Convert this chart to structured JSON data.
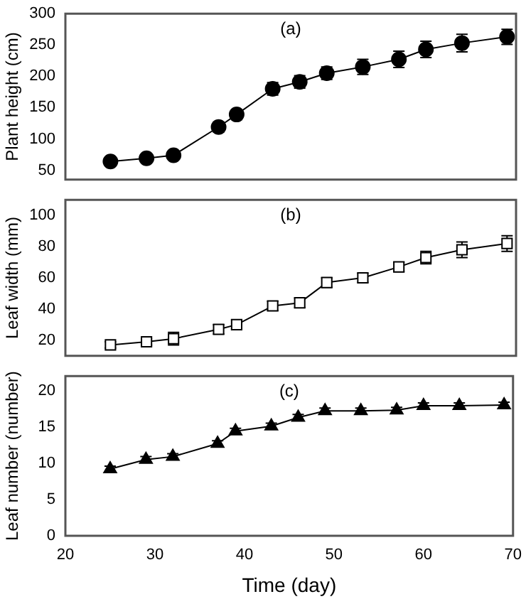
{
  "chart_data": [
    {
      "type": "line",
      "title": "(a)",
      "ylabel": "Plant height (cm)",
      "x": [
        25,
        29,
        32,
        37,
        39,
        43,
        46,
        49,
        53,
        57,
        60,
        64,
        69
      ],
      "xlim": [
        20,
        70
      ],
      "xticks": [
        20,
        30,
        40,
        50,
        60,
        70
      ],
      "ylim": [
        35,
        300
      ],
      "yticks": [
        50,
        100,
        150,
        200,
        250,
        300
      ],
      "tick_labels": "y",
      "grid": false,
      "legend": false,
      "marker": "circle",
      "series": [
        {
          "color": "#000000",
          "values": [
            64,
            69,
            74,
            119,
            139,
            180,
            191,
            205,
            215,
            227,
            243,
            253,
            263
          ],
          "errors": [
            null,
            null,
            null,
            8,
            8,
            10,
            10,
            10,
            12,
            13,
            13,
            14,
            12
          ]
        }
      ]
    },
    {
      "type": "line",
      "title": "(b)",
      "ylabel": "Leaf width (mm)",
      "x": [
        25,
        29,
        32,
        37,
        39,
        43,
        46,
        49,
        53,
        57,
        60,
        64,
        69
      ],
      "xlim": [
        20,
        70
      ],
      "xticks": [
        20,
        30,
        40,
        50,
        60,
        70
      ],
      "ylim": [
        10,
        110
      ],
      "yticks": [
        20,
        40,
        60,
        80,
        100
      ],
      "tick_labels": "y",
      "grid": false,
      "legend": false,
      "marker": "square",
      "series": [
        {
          "color": "#000000",
          "values": [
            17,
            19,
            21,
            27,
            30,
            42,
            44,
            57,
            60,
            67,
            73,
            78,
            82
          ],
          "errors": [
            2,
            2,
            4,
            3,
            3,
            3,
            3,
            3,
            3,
            3,
            4,
            5,
            5
          ]
        }
      ]
    },
    {
      "type": "line",
      "title": "(c)",
      "xlabel": "Time (day)",
      "ylabel": "Leaf number (number)",
      "x": [
        25,
        29,
        32,
        37,
        39,
        43,
        46,
        49,
        53,
        57,
        60,
        64,
        69
      ],
      "xlim": [
        20,
        70
      ],
      "xticks": [
        20,
        30,
        40,
        50,
        60,
        70
      ],
      "ylim": [
        0,
        22
      ],
      "yticks": [
        0,
        5,
        10,
        15,
        20
      ],
      "grid": false,
      "legend": false,
      "marker": "triangle",
      "series": [
        {
          "color": "#000000",
          "values": [
            9.2,
            10.5,
            10.9,
            12.7,
            14.4,
            15.1,
            16.3,
            17.2,
            17.2,
            17.3,
            17.9,
            17.9,
            18.0
          ],
          "errors": [
            0.4,
            0.4,
            0.4,
            0.4,
            0.4,
            0.4,
            0.4,
            0.4,
            0.4,
            0.4,
            0.4,
            0.4,
            0.4
          ]
        }
      ]
    }
  ]
}
